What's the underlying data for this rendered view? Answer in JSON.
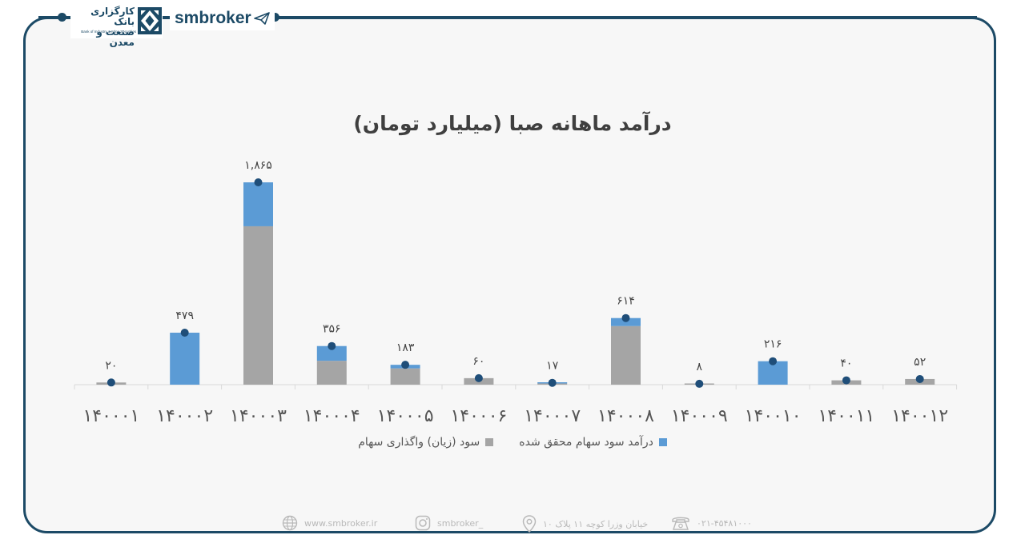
{
  "header": {
    "bank_name": "کارگزاری بانک\nصنعت و معدن",
    "bank_name_en": "Bank of Industry & Mine Securities",
    "brand": "smbroker"
  },
  "chart_data": {
    "type": "bar",
    "title": "درآمد ماهانه صبا (میلیارد تومان)",
    "categories": [
      "۱۴۰۰۰۱",
      "۱۴۰۰۰۲",
      "۱۴۰۰۰۳",
      "۱۴۰۰۰۴",
      "۱۴۰۰۰۵",
      "۱۴۰۰۰۶",
      "۱۴۰۰۰۷",
      "۱۴۰۰۰۸",
      "۱۴۰۰۰۹",
      "۱۴۰۰۱۰",
      "۱۴۰۰۱۱",
      "۱۴۰۰۱۲"
    ],
    "stacked": true,
    "series": [
      {
        "name": "سود (زیان) واگذاری سهام",
        "color": "#a5a5a5",
        "values": [
          20,
          0,
          1460,
          220,
          150,
          60,
          10,
          540,
          8,
          0,
          40,
          52
        ]
      },
      {
        "name": "درآمد سود سهام محقق شده",
        "color": "#5b9bd5",
        "values": [
          0,
          479,
          405,
          136,
          33,
          0,
          7,
          74,
          0,
          216,
          0,
          0
        ]
      }
    ],
    "totals": [
      20,
      479,
      1865,
      356,
      183,
      60,
      17,
      614,
      8,
      216,
      40,
      52
    ],
    "total_labels": [
      "۲۰",
      "۴۷۹",
      "۱,۸۶۵",
      "۳۵۶",
      "۱۸۳",
      "۶۰",
      "۱۷",
      "۶۱۴",
      "۸",
      "۲۱۶",
      "۴۰",
      "۵۲"
    ],
    "marker_color": "#1f4e79",
    "ylim": [
      0,
      2000
    ],
    "grid": false,
    "legend": "bottom"
  },
  "footer": {
    "website": "www.smbroker.ir",
    "instagram": "smbroker_",
    "address": "خیابان وزرا کوچه ۱۱ پلاک ۱۰",
    "phone": "۰۲۱-۴۵۴۸۱۰۰۰"
  }
}
